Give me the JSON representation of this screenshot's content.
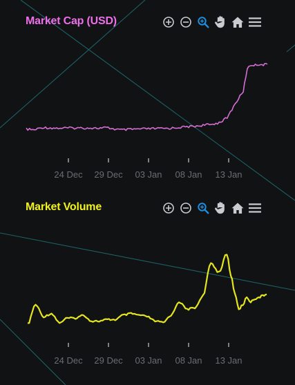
{
  "colors": {
    "background": "#111214",
    "cap_line": "#d86fd6",
    "volume_line": "#e6e61e",
    "cap_title": "#ee6fea",
    "volume_title": "#f2f21c",
    "axis_text": "#6a6d72",
    "toolbar_icon": "#c8cbd0",
    "toolbar_active": "#1e8fe0",
    "bg_lines": "#1e6a6e"
  },
  "toolbar_icons": [
    "zoom-in-icon",
    "zoom-out-icon",
    "zoom-selection-icon",
    "pan-hand-icon",
    "home-reset-icon",
    "menu-icon"
  ],
  "panels": [
    {
      "title": "Market Cap (USD)"
    },
    {
      "title": "Market Volume"
    }
  ],
  "chart_data": [
    {
      "type": "line",
      "title": "Market Cap (USD)",
      "x_ticks": [
        "24 Dec",
        "29 Dec",
        "03 Jan",
        "08 Jan",
        "13 Jan"
      ],
      "x_range": [
        "20 Dec",
        "19 Jan"
      ],
      "grid": false,
      "legend": "none",
      "series": [
        {
          "x": [
            0,
            1,
            2,
            3,
            4,
            5,
            6,
            7,
            8,
            9,
            10,
            11,
            12,
            13,
            14,
            15,
            16,
            17,
            18,
            19,
            20,
            21,
            22,
            23,
            24,
            25,
            26,
            27,
            27.5,
            28,
            28.5,
            29,
            29.5,
            30
          ],
          "values": [
            0.3,
            0.27,
            0.36,
            0.34,
            0.33,
            0.34,
            0.34,
            0.34,
            0.34,
            0.33,
            0.35,
            0.3,
            0.27,
            0.29,
            0.3,
            0.31,
            0.32,
            0.32,
            0.33,
            0.36,
            0.38,
            0.4,
            0.44,
            0.46,
            0.53,
            0.7,
            1.2,
            1.64,
            2.46,
            2.57,
            2.57,
            2.6,
            2.58,
            2.6
          ]
        }
      ]
    },
    {
      "type": "line",
      "title": "Market Volume",
      "x_ticks": [
        "24 Dec",
        "29 Dec",
        "03 Jan",
        "08 Jan",
        "13 Jan"
      ],
      "x_range": [
        "20 Dec",
        "19 Jan"
      ],
      "grid": false,
      "legend": "none",
      "series": [
        {
          "x": [
            0,
            1,
            2,
            3,
            4,
            5,
            6,
            7,
            8,
            9,
            10,
            11,
            12,
            13,
            14,
            15,
            16,
            17,
            18,
            19,
            20,
            21,
            22,
            23,
            24,
            25,
            25.5,
            26,
            26.5,
            27,
            27.5,
            28,
            28.5,
            29,
            29.5,
            30
          ],
          "values": [
            0.05,
            0.7,
            0.3,
            0.4,
            0.1,
            0.25,
            0.25,
            0.35,
            0.15,
            0.15,
            0.2,
            0.2,
            0.35,
            0.4,
            0.35,
            0.3,
            0.15,
            0.1,
            0.35,
            0.8,
            0.55,
            0.6,
            1.0,
            2.1,
            1.8,
            2.4,
            1.7,
            1.1,
            0.55,
            0.7,
            0.95,
            0.8,
            0.9,
            0.95,
            1.0,
            1.05
          ]
        }
      ]
    }
  ]
}
